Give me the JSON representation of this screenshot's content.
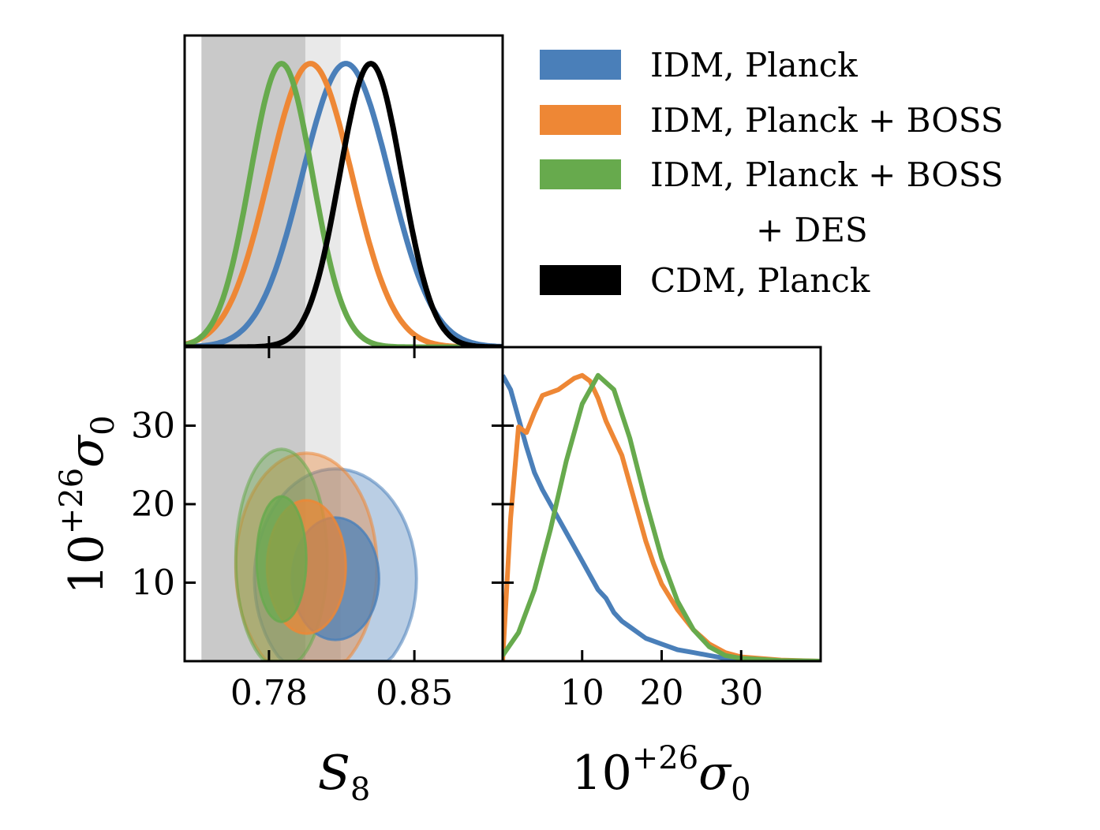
{
  "chart_data": {
    "type": "corner-plot",
    "parameters": [
      {
        "name": "S8",
        "label_base": "S",
        "label_sub": "8",
        "range": [
          0.7394,
          0.8925
        ],
        "ticks": [
          0.78,
          0.85
        ],
        "tick_labels": [
          "0.78",
          "0.85"
        ]
      },
      {
        "name": "sigma0",
        "label_base": "10",
        "label_sup": "+26",
        "label_sym": "σ",
        "label_sub": "0",
        "range": [
          0,
          40
        ],
        "ticks_y": [
          10,
          20,
          30
        ],
        "tick_labels_y": [
          "10",
          "20",
          "30"
        ],
        "ticks_x": [
          10,
          20,
          30
        ],
        "tick_labels_x": [
          "10",
          "20",
          "30"
        ]
      }
    ],
    "shaded_bands_S8": [
      {
        "range": [
          0.7475,
          0.8145
        ],
        "color": "#e9e9e9"
      },
      {
        "range": [
          0.7475,
          0.7975
        ],
        "color": "#c9c9c9"
      }
    ],
    "series": [
      {
        "name": "IDM, Planck",
        "color": "#4a7fb9",
        "S8_marginal": {
          "mean": 0.817,
          "sigma": 0.021
        },
        "sigma0_marginal": {
          "x": [
            0,
            1,
            2,
            3,
            4,
            5,
            6,
            7,
            8,
            9,
            10,
            11,
            12,
            13,
            14,
            15,
            16,
            18,
            20,
            22,
            24,
            26,
            28,
            30,
            35,
            40
          ],
          "y": [
            1.0,
            0.95,
            0.85,
            0.75,
            0.66,
            0.6,
            0.55,
            0.5,
            0.45,
            0.4,
            0.35,
            0.3,
            0.25,
            0.22,
            0.17,
            0.14,
            0.12,
            0.08,
            0.06,
            0.04,
            0.03,
            0.02,
            0.01,
            0.005,
            0.0,
            0.0
          ]
        },
        "contour_center": [
          0.812,
          10.5
        ],
        "contour_68_halfwidths": [
          0.021,
          7.8
        ],
        "contour_95_halfwidths": [
          0.039,
          14.0
        ],
        "contour_rotation_deg": -40
      },
      {
        "name": "IDM, Planck + BOSS",
        "color": "#ee8735",
        "S8_marginal": {
          "mean": 0.8,
          "sigma": 0.02
        },
        "sigma0_marginal": {
          "x": [
            0,
            1,
            2,
            3,
            4,
            5,
            6,
            7,
            8,
            9,
            10,
            11,
            12,
            13,
            14,
            15,
            16,
            17,
            18,
            19,
            20,
            22,
            24,
            26,
            28,
            30,
            35,
            40
          ],
          "y": [
            0.0,
            0.5,
            0.82,
            0.8,
            0.87,
            0.93,
            0.94,
            0.95,
            0.97,
            0.99,
            1.0,
            0.98,
            0.92,
            0.84,
            0.78,
            0.72,
            0.62,
            0.52,
            0.42,
            0.34,
            0.27,
            0.18,
            0.11,
            0.06,
            0.03,
            0.015,
            0.004,
            0.0
          ]
        },
        "contour_center": [
          0.798,
          12.0
        ],
        "contour_68_halfwidths": [
          0.019,
          8.5
        ],
        "contour_95_halfwidths": [
          0.034,
          14.5
        ],
        "contour_rotation_deg": -30
      },
      {
        "name": "IDM, Planck + BOSS\n + DES",
        "color": "#67aa4d",
        "S8_marginal": {
          "mean": 0.786,
          "sigma": 0.015
        },
        "sigma0_marginal": {
          "x": [
            0,
            2,
            4,
            6,
            8,
            10,
            12,
            14,
            16,
            18,
            20,
            22,
            24,
            26,
            28,
            30,
            35,
            40
          ],
          "y": [
            0.02,
            0.1,
            0.25,
            0.46,
            0.7,
            0.9,
            1.0,
            0.95,
            0.78,
            0.56,
            0.36,
            0.21,
            0.11,
            0.05,
            0.02,
            0.01,
            0.002,
            0.0
          ]
        },
        "contour_center": [
          0.786,
          13.0
        ],
        "contour_68_halfwidths": [
          0.012,
          8.0
        ],
        "contour_95_halfwidths": [
          0.022,
          14.0
        ],
        "contour_rotation_deg": -15
      },
      {
        "name": "CDM, Planck",
        "color": "#000000",
        "S8_marginal": {
          "mean": 0.829,
          "sigma": 0.015
        }
      }
    ],
    "xlabels": [
      "S_8",
      "10^{+26}σ_0"
    ],
    "ylabel": "10^{+26}σ_0",
    "legend_position": "top-right"
  },
  "legend": {
    "items": [
      {
        "label_lines": [
          "IDM, Planck"
        ],
        "color": "#4a7fb9"
      },
      {
        "label_lines": [
          "IDM, Planck + BOSS"
        ],
        "color": "#ee8735"
      },
      {
        "label_lines": [
          "IDM, Planck + BOSS",
          "+ DES"
        ],
        "color": "#67aa4d"
      },
      {
        "label_lines": [
          "CDM, Planck"
        ],
        "color": "#000000"
      }
    ]
  },
  "axis_labels": {
    "x_left": {
      "base": "S",
      "sub": "8"
    },
    "x_right": {
      "base": "10",
      "sup": "+26",
      "sym": "σ",
      "sub": "0"
    },
    "y_left": {
      "base": "10",
      "sup": "+26",
      "sym": "σ",
      "sub": "0"
    }
  }
}
